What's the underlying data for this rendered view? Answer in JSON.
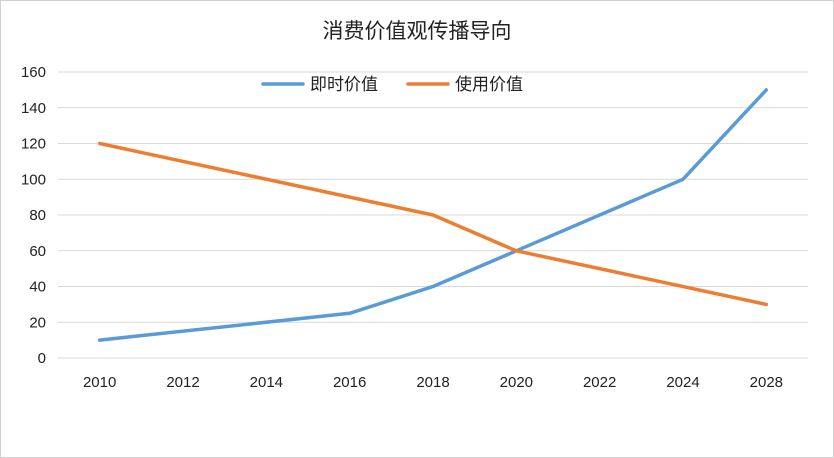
{
  "chart_data": {
    "type": "line",
    "title": "消费价值观传播导向",
    "xlabel": "",
    "ylabel": "",
    "x": [
      2010,
      2012,
      2014,
      2016,
      2018,
      2020,
      2022,
      2024,
      2028
    ],
    "x_tick_labels": [
      "2010",
      "2012",
      "2014",
      "2016",
      "2018",
      "2020",
      "2022",
      "2024",
      "2028"
    ],
    "ylim": [
      0,
      160
    ],
    "y_ticks": [
      0,
      20,
      40,
      60,
      80,
      100,
      120,
      140,
      160
    ],
    "y_tick_labels": [
      "0",
      "20",
      "40",
      "60",
      "80",
      "100",
      "120",
      "140",
      "160"
    ],
    "grid": true,
    "legend_position": "top-center",
    "series": [
      {
        "name": "即时价值",
        "color": "#5b9bd5",
        "points": [
          [
            0,
            10
          ],
          [
            3,
            25
          ],
          [
            4,
            40
          ],
          [
            5,
            60
          ],
          [
            7,
            100
          ],
          [
            8,
            150
          ]
        ]
      },
      {
        "name": "使用价值",
        "color": "#ed7d31",
        "points": [
          [
            0,
            120
          ],
          [
            4,
            80
          ],
          [
            5,
            60
          ],
          [
            8,
            30
          ]
        ]
      }
    ]
  }
}
